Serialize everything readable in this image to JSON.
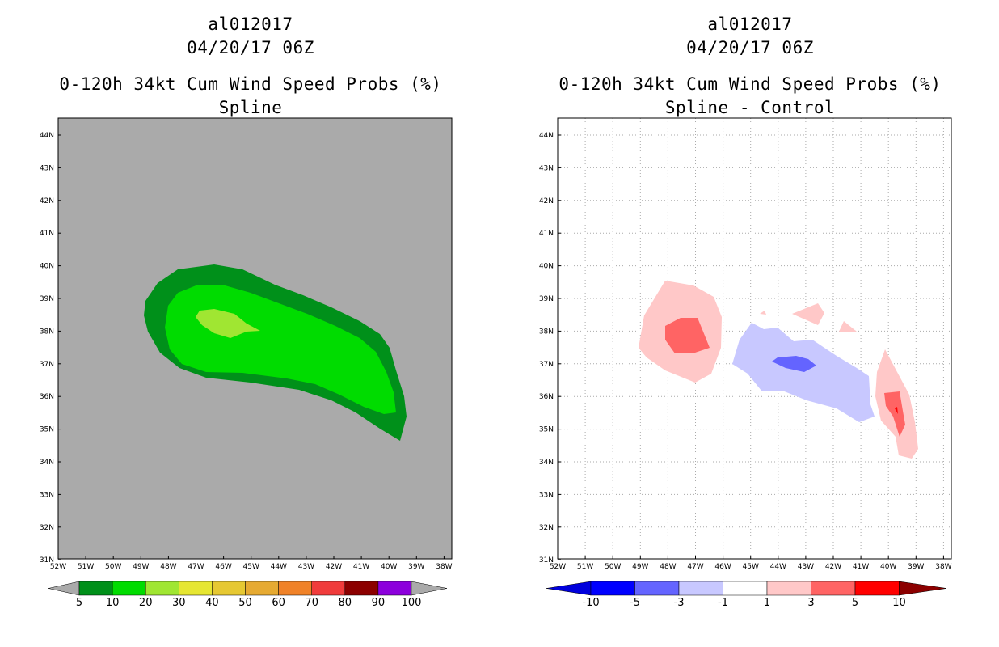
{
  "left_panel": {
    "storm_id": "al012017",
    "datetime": "04/20/17 06Z",
    "product": "0-120h 34kt Cum Wind Speed Probs (%)",
    "method": "Spline",
    "background_color": "#aaaaaa",
    "contour_colors": [
      "#00901a",
      "#00dc00",
      "#a0e632"
    ],
    "colorbar_labels": [
      "5",
      "10",
      "20",
      "30",
      "40",
      "50",
      "60",
      "70",
      "80",
      "90",
      "100"
    ],
    "colorbar_colors": [
      "#00901a",
      "#00dc00",
      "#a0e632",
      "#e6e632",
      "#e6c832",
      "#e6aa32",
      "#f08228",
      "#f03c3c",
      "#8c0000",
      "#8c00dc"
    ]
  },
  "right_panel": {
    "storm_id": "al012017",
    "datetime": "04/20/17 06Z",
    "product": "0-120h 34kt Cum Wind Speed Probs (%)",
    "method": "Spline - Control",
    "colorbar_labels": [
      "-10",
      "-5",
      "-3",
      "-1",
      "1",
      "3",
      "5",
      "10"
    ],
    "colorbar_colors": [
      "#0000dc",
      "#0000ff",
      "#6464ff",
      "#c8c8ff",
      "#ffffff",
      "#ffc8c8",
      "#ff6464",
      "#ff0000",
      "#8c0000"
    ]
  },
  "map_axes": {
    "lat_labels": [
      "44N",
      "43N",
      "42N",
      "41N",
      "40N",
      "39N",
      "38N",
      "37N",
      "36N",
      "35N",
      "34N",
      "33N",
      "32N",
      "31N"
    ],
    "lon_labels": [
      "52W",
      "51W",
      "50W",
      "49W",
      "48W",
      "47W",
      "46W",
      "45W",
      "44W",
      "43W",
      "42W",
      "41W",
      "40W",
      "39W",
      "38W"
    ]
  }
}
